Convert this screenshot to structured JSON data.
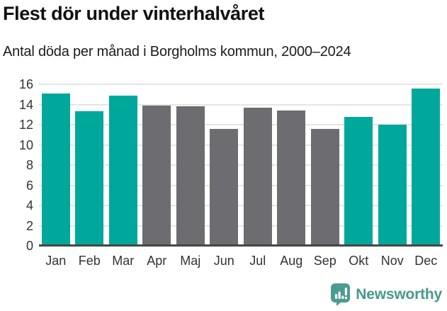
{
  "header": {
    "title": "Flest dör under vinterhalvåret",
    "subtitle": "Antal döda per månad i Borgholms kommun, 2000–2024"
  },
  "chart_data": {
    "type": "bar",
    "title": "Flest dör under vinterhalvåret",
    "subtitle": "Antal döda per månad i Borgholms kommun, 2000–2024",
    "categories": [
      "Jan",
      "Feb",
      "Mar",
      "Apr",
      "Maj",
      "Jun",
      "Jul",
      "Aug",
      "Sep",
      "Okt",
      "Nov",
      "Dec"
    ],
    "values": [
      15.1,
      13.3,
      14.9,
      13.9,
      13.8,
      11.6,
      13.7,
      13.4,
      11.6,
      12.8,
      12.0,
      15.6
    ],
    "bar_color_keys": [
      "highlight",
      "highlight",
      "highlight",
      "muted",
      "muted",
      "muted",
      "muted",
      "muted",
      "muted",
      "highlight",
      "highlight",
      "highlight"
    ],
    "xlabel": "",
    "ylabel": "",
    "ylim": [
      0,
      16
    ],
    "yticks": [
      0,
      2,
      4,
      6,
      8,
      10,
      12,
      14,
      16
    ],
    "grid": true,
    "legend": "none",
    "colors": {
      "highlight": "#00a79b",
      "muted": "#6c6c71",
      "gridline": "#e5e5e5",
      "axis": "#464646",
      "tick_text": "#333333"
    }
  },
  "footer": {
    "brand": "Newsworthy",
    "logo_icon": "newsworthy-badge-icon",
    "brand_color": "#47988e",
    "badge_color": "#4a9c92"
  }
}
